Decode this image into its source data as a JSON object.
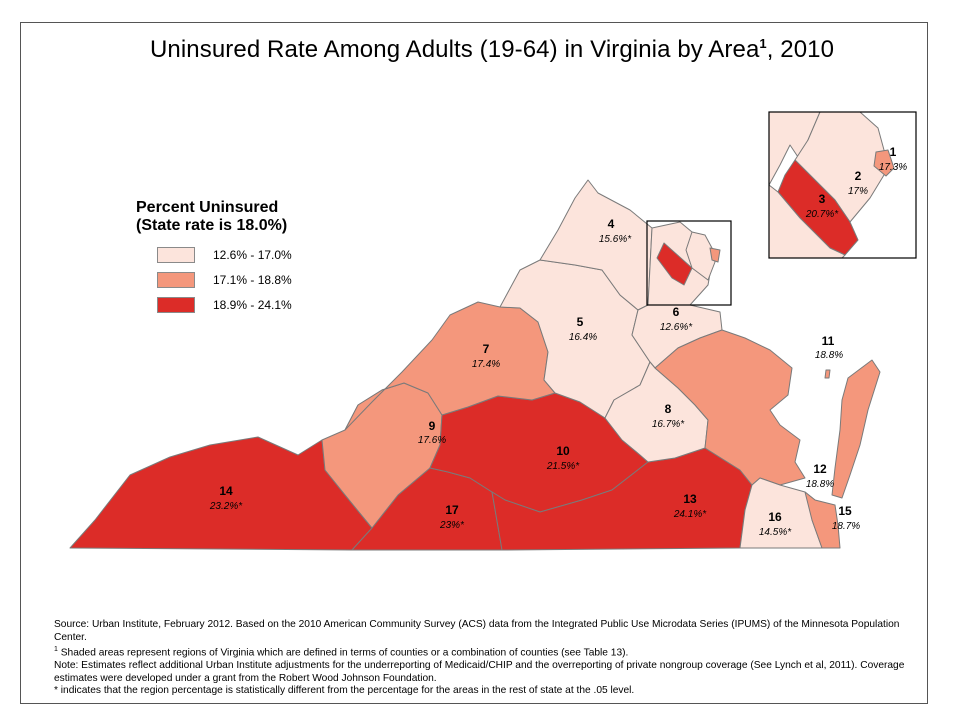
{
  "title": "Uninsured Rate Among Adults (19-64) in Virginia by Area",
  "title_sup": "1",
  "title_year": ", 2010",
  "legend": {
    "title_line1": "Percent Uninsured",
    "title_line2": "(State rate is 18.0%)",
    "items": [
      {
        "label": "12.6% - 17.0%",
        "color": "#fce4dc"
      },
      {
        "label": "17.1% - 18.8%",
        "color": "#f4977c"
      },
      {
        "label": "18.9% - 24.1%",
        "color": "#dc2c28"
      }
    ]
  },
  "regions": [
    {
      "id": "1",
      "value": "17.3%",
      "category": 1
    },
    {
      "id": "2",
      "value": "17%",
      "category": 0
    },
    {
      "id": "3",
      "value": "20.7%*",
      "category": 2
    },
    {
      "id": "4",
      "value": "15.6%*",
      "category": 0
    },
    {
      "id": "5",
      "value": "16.4%",
      "category": 0
    },
    {
      "id": "6",
      "value": "12.6%*",
      "category": 0
    },
    {
      "id": "7",
      "value": "17.4%",
      "category": 1
    },
    {
      "id": "8",
      "value": "16.7%*",
      "category": 0
    },
    {
      "id": "9",
      "value": "17.6%",
      "category": 1
    },
    {
      "id": "10",
      "value": "21.5%*",
      "category": 2
    },
    {
      "id": "11",
      "value": "18.8%",
      "category": 1
    },
    {
      "id": "12",
      "value": "18.8%",
      "category": 1
    },
    {
      "id": "13",
      "value": "24.1%*",
      "category": 2
    },
    {
      "id": "14",
      "value": "23.2%*",
      "category": 2
    },
    {
      "id": "15",
      "value": "18.7%",
      "category": 1
    },
    {
      "id": "16",
      "value": "14.5%*",
      "category": 0
    },
    {
      "id": "17",
      "value": "23%*",
      "category": 2
    }
  ],
  "notes": {
    "source": "Source: Urban Institute, February 2012. Based on the 2010 American Community Survey (ACS) data from the Integrated Public Use Microdata Series (IPUMS) of the Minnesota Population Center.",
    "footnote_mark": "1",
    "footnote": " Shaded areas represent regions of Virginia which are defined in terms of counties or a combination of counties (see Table 13).",
    "note": "Note: Estimates reflect additional Urban Institute adjustments for the underreporting of Medicaid/CHIP and the overreporting of private nongroup coverage (See Lynch et al, 2011).  Coverage estimates were developed under a grant from the Robert Wood Johnson Foundation.",
    "asterisk": "* indicates that the region percentage is statistically different from the percentage for the areas in the rest of state at the .05 level."
  }
}
